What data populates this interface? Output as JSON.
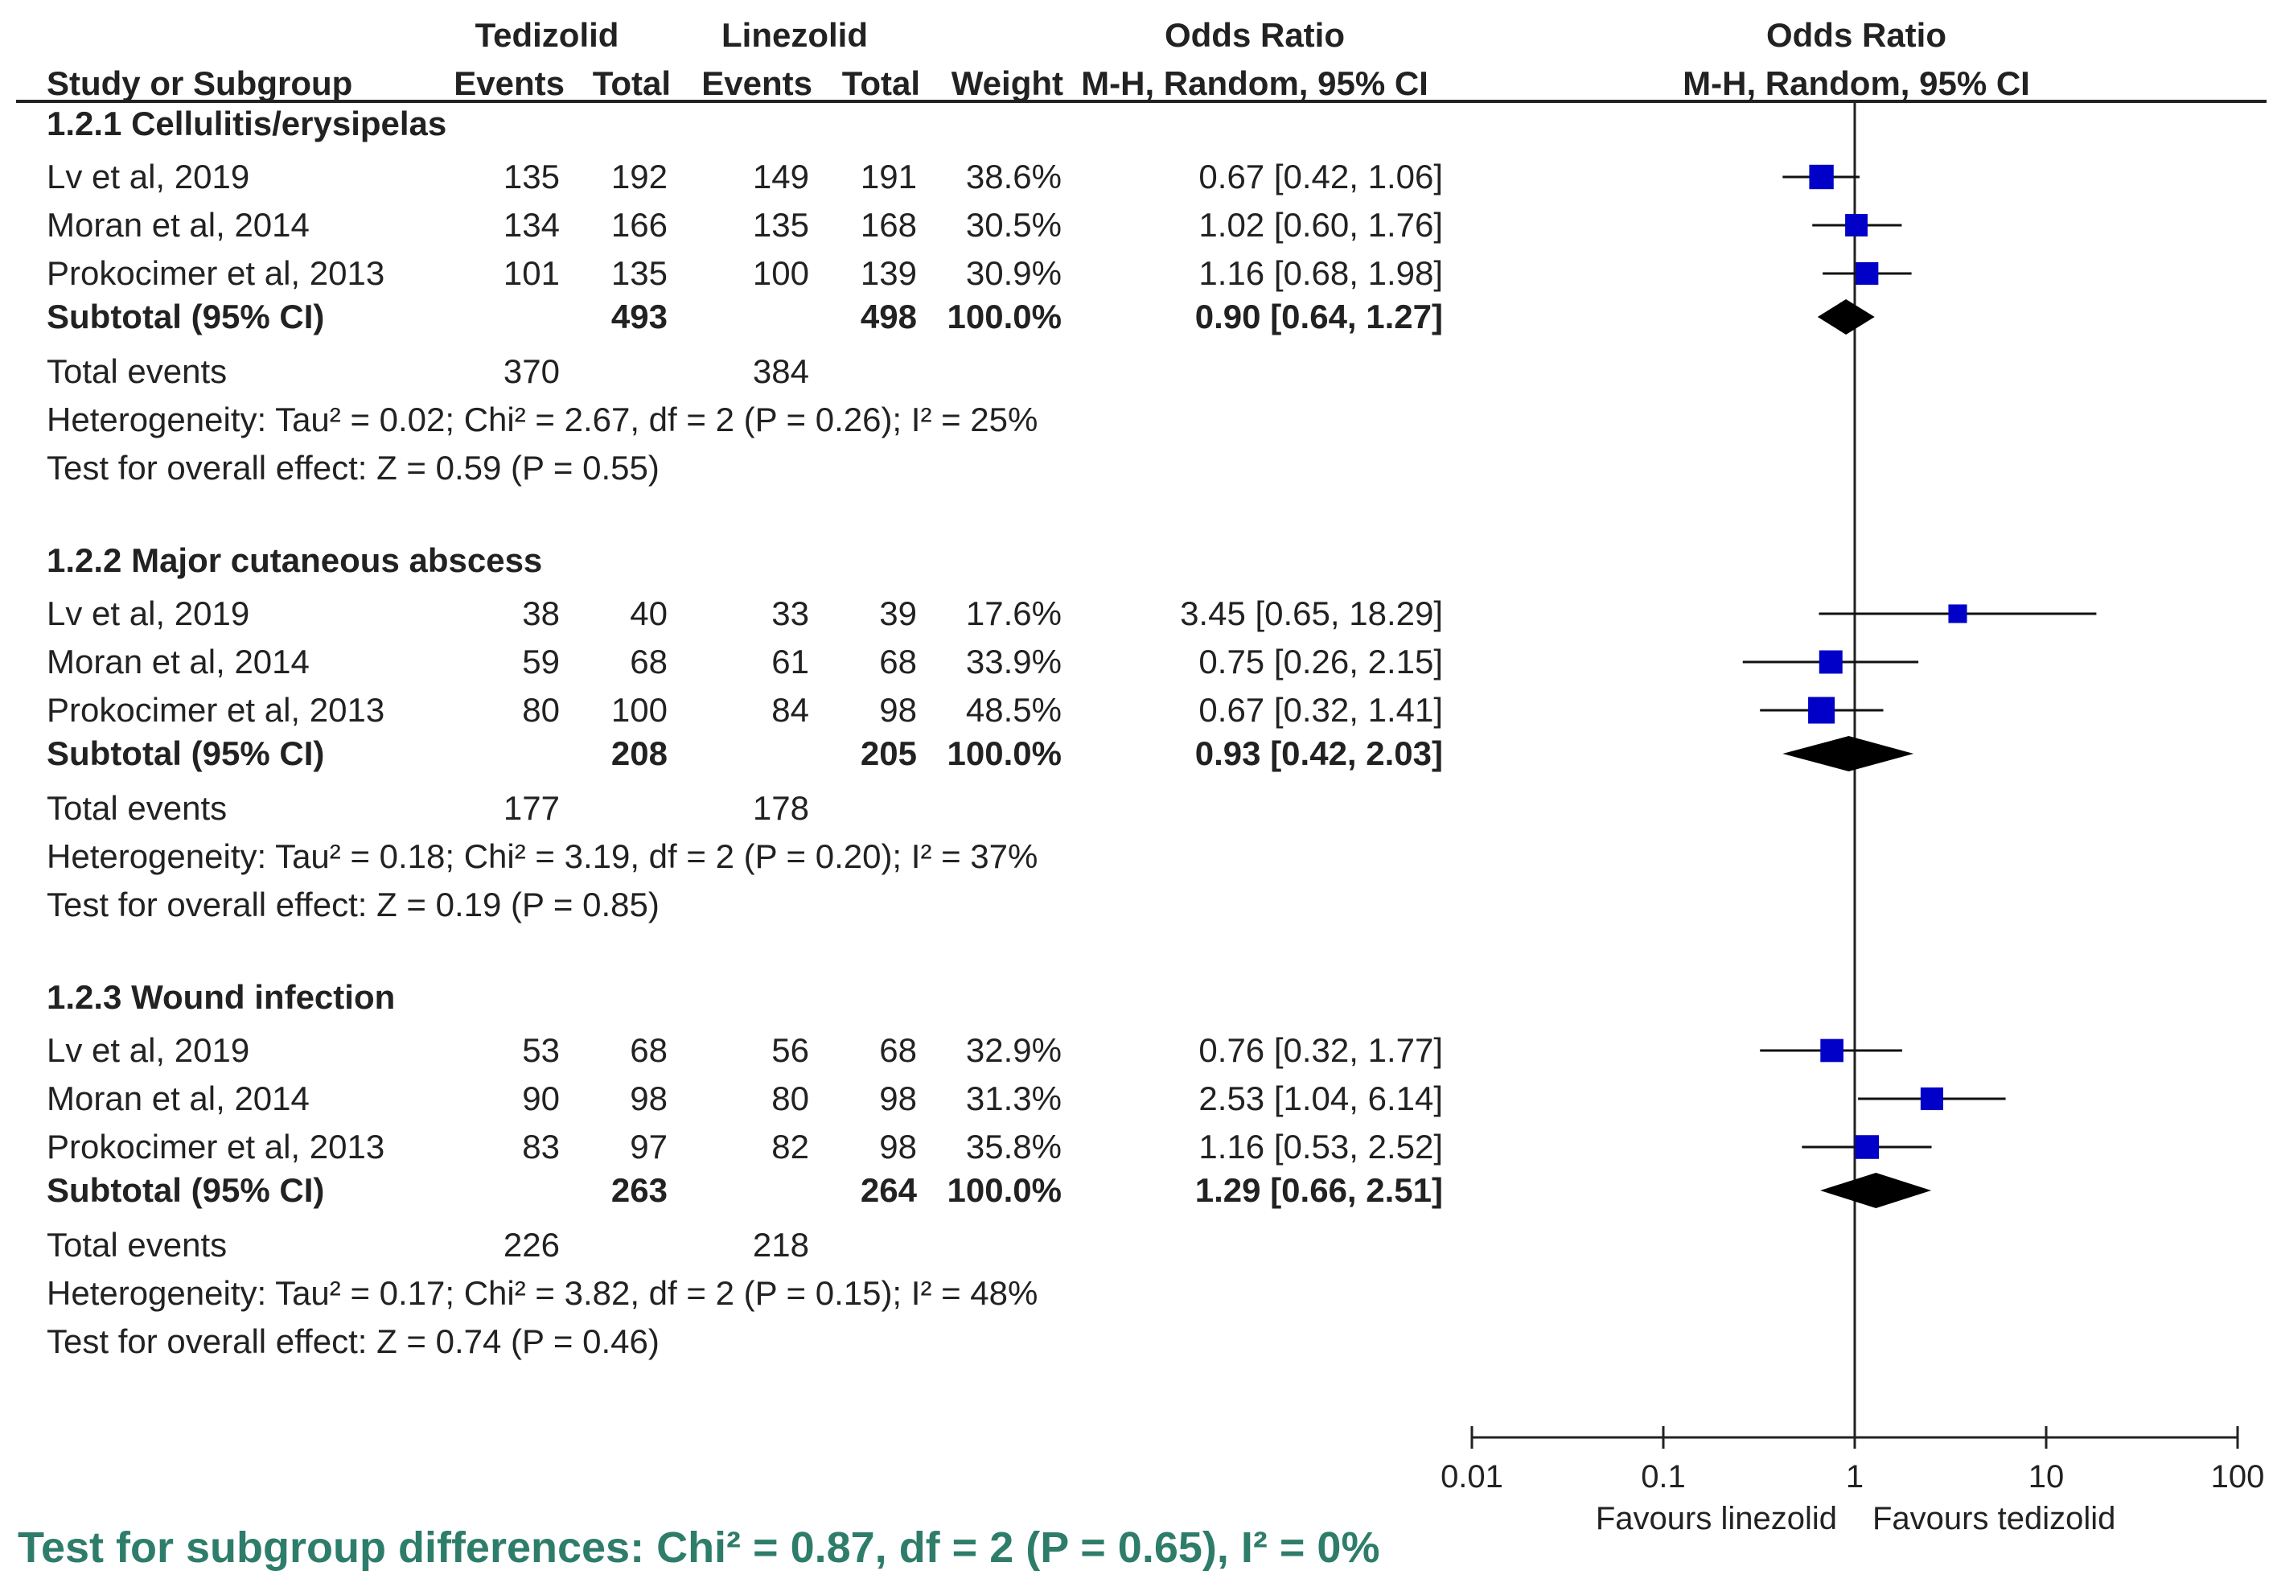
{
  "chart_data": {
    "type": "forest",
    "title": "",
    "headers": {
      "group_tedizolid": "Tedizolid",
      "group_linezolid": "Linezolid",
      "study": "Study or Subgroup",
      "events_t": "Events",
      "total_t": "Total",
      "events_l": "Events",
      "total_l": "Total",
      "weight": "Weight",
      "or_title": "Odds Ratio",
      "or_method": "M-H, Random, 95% CI",
      "plot_title": "Odds Ratio",
      "plot_method": "M-H, Random, 95% CI"
    },
    "x_axis": {
      "scale": "log",
      "range": [
        0.01,
        100
      ],
      "ticks": [
        "0.01",
        "0.1",
        "1",
        "10",
        "100"
      ],
      "tick_values": [
        0.01,
        0.1,
        1,
        10,
        100
      ],
      "favours_left": "Favours linezolid",
      "favours_right": "Favours tedizolid"
    },
    "subgroups": [
      {
        "title": "1.2.1 Cellulitis/erysipelas",
        "studies": [
          {
            "name": "Lv et al, 2019",
            "e1": "135",
            "n1": "192",
            "e2": "149",
            "n2": "191",
            "weight": "38.6%",
            "ci_text": "0.67 [0.42, 1.06]",
            "or": 0.67,
            "lo": 0.42,
            "hi": 1.06,
            "w": 38.6
          },
          {
            "name": "Moran et al, 2014",
            "e1": "134",
            "n1": "166",
            "e2": "135",
            "n2": "168",
            "weight": "30.5%",
            "ci_text": "1.02 [0.60, 1.76]",
            "or": 1.02,
            "lo": 0.6,
            "hi": 1.76,
            "w": 30.5
          },
          {
            "name": "Prokocimer et al, 2013",
            "e1": "101",
            "n1": "135",
            "e2": "100",
            "n2": "139",
            "weight": "30.9%",
            "ci_text": "1.16 [0.68, 1.98]",
            "or": 1.16,
            "lo": 0.68,
            "hi": 1.98,
            "w": 30.9
          }
        ],
        "subtotal": {
          "label": "Subtotal (95% CI)",
          "n1": "493",
          "n2": "498",
          "weight": "100.0%",
          "ci_text": "0.90 [0.64, 1.27]",
          "or": 0.9,
          "lo": 0.64,
          "hi": 1.27
        },
        "total_events": {
          "label": "Total events",
          "e1": "370",
          "e2": "384"
        },
        "heterogeneity": "Heterogeneity: Tau² = 0.02; Chi² = 2.67, df = 2 (P = 0.26); I² = 25%",
        "overall_effect": "Test for overall effect: Z = 0.59 (P = 0.55)"
      },
      {
        "title": "1.2.2 Major cutaneous abscess",
        "studies": [
          {
            "name": "Lv et al, 2019",
            "e1": "38",
            "n1": "40",
            "e2": "33",
            "n2": "39",
            "weight": "17.6%",
            "ci_text": "3.45 [0.65, 18.29]",
            "or": 3.45,
            "lo": 0.65,
            "hi": 18.29,
            "w": 17.6
          },
          {
            "name": "Moran et al, 2014",
            "e1": "59",
            "n1": "68",
            "e2": "61",
            "n2": "68",
            "weight": "33.9%",
            "ci_text": "0.75 [0.26, 2.15]",
            "or": 0.75,
            "lo": 0.26,
            "hi": 2.15,
            "w": 33.9
          },
          {
            "name": "Prokocimer et al, 2013",
            "e1": "80",
            "n1": "100",
            "e2": "84",
            "n2": "98",
            "weight": "48.5%",
            "ci_text": "0.67 [0.32, 1.41]",
            "or": 0.67,
            "lo": 0.32,
            "hi": 1.41,
            "w": 48.5
          }
        ],
        "subtotal": {
          "label": "Subtotal (95% CI)",
          "n1": "208",
          "n2": "205",
          "weight": "100.0%",
          "ci_text": "0.93 [0.42, 2.03]",
          "or": 0.93,
          "lo": 0.42,
          "hi": 2.03
        },
        "total_events": {
          "label": "Total events",
          "e1": "177",
          "e2": "178"
        },
        "heterogeneity": "Heterogeneity: Tau² = 0.18; Chi² = 3.19, df = 2 (P = 0.20); I² = 37%",
        "overall_effect": "Test for overall effect: Z = 0.19 (P = 0.85)"
      },
      {
        "title": "1.2.3 Wound infection",
        "studies": [
          {
            "name": "Lv et al, 2019",
            "e1": "53",
            "n1": "68",
            "e2": "56",
            "n2": "68",
            "weight": "32.9%",
            "ci_text": "0.76 [0.32, 1.77]",
            "or": 0.76,
            "lo": 0.32,
            "hi": 1.77,
            "w": 32.9
          },
          {
            "name": "Moran et al, 2014",
            "e1": "90",
            "n1": "98",
            "e2": "80",
            "n2": "98",
            "weight": "31.3%",
            "ci_text": "2.53 [1.04, 6.14]",
            "or": 2.53,
            "lo": 1.04,
            "hi": 6.14,
            "w": 31.3
          },
          {
            "name": "Prokocimer et al, 2013",
            "e1": "83",
            "n1": "97",
            "e2": "82",
            "n2": "98",
            "weight": "35.8%",
            "ci_text": "1.16 [0.53, 2.52]",
            "or": 1.16,
            "lo": 0.53,
            "hi": 2.52,
            "w": 35.8
          }
        ],
        "subtotal": {
          "label": "Subtotal (95% CI)",
          "n1": "263",
          "n2": "264",
          "weight": "100.0%",
          "ci_text": "1.29 [0.66, 2.51]",
          "or": 1.29,
          "lo": 0.66,
          "hi": 2.51
        },
        "total_events": {
          "label": "Total events",
          "e1": "226",
          "e2": "218"
        },
        "heterogeneity": "Heterogeneity: Tau² = 0.17; Chi² = 3.82, df = 2 (P = 0.15); I² = 48%",
        "overall_effect": "Test for overall effect: Z = 0.74 (P = 0.46)"
      }
    ],
    "footer": "Test for subgroup differences: Chi² = 0.87, df = 2 (P = 0.65), I² = 0%",
    "colors": {
      "study_marker": "#0000c8",
      "diamond": "#000000",
      "text": "#222222",
      "footer": "#2e7d6b"
    }
  }
}
